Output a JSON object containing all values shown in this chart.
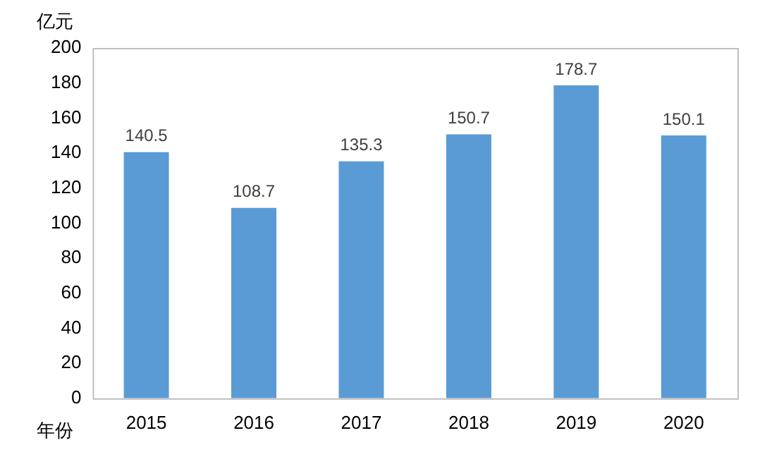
{
  "chart_data": {
    "type": "bar",
    "xlabel": "年份",
    "ylabel": "亿元",
    "categories": [
      "2015",
      "2016",
      "2017",
      "2018",
      "2019",
      "2020"
    ],
    "values": [
      140.5,
      108.7,
      135.3,
      150.7,
      178.7,
      150.1
    ],
    "color": "#5b9bd5",
    "ylim": [
      0,
      200
    ],
    "yticks": [
      0,
      20,
      40,
      60,
      80,
      100,
      120,
      140,
      160,
      180,
      200
    ],
    "grid": false,
    "legend": false,
    "data_labels": true
  }
}
